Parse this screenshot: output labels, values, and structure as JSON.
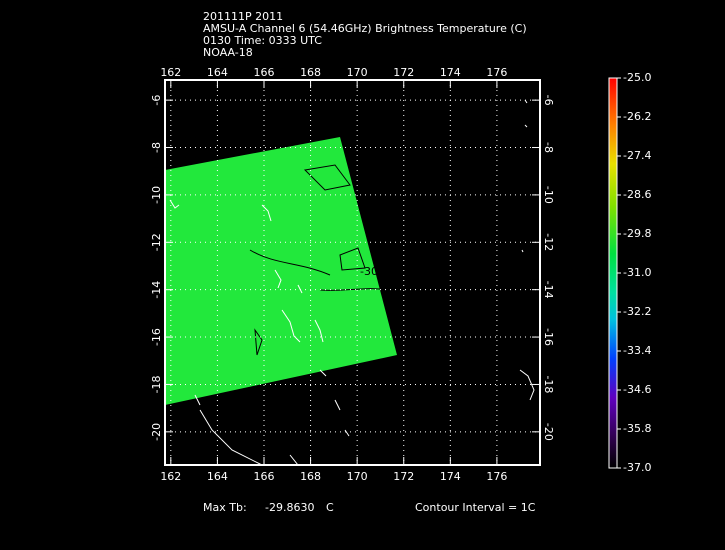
{
  "header": {
    "lines": [
      "201111P 2011",
      "AMSU-A Channel 6 (54.46GHz) Brightness Temperature (C)",
      "0130 Time: 0333 UTC",
      "NOAA-18"
    ]
  },
  "map": {
    "lonlim": [
      161.75,
      177.85
    ],
    "latlim": [
      -21.4,
      -5.15
    ],
    "lon_ticks": [
      162,
      164,
      166,
      168,
      170,
      172,
      174,
      176
    ],
    "lat_ticks": [
      -6,
      -8,
      -10,
      -12,
      -14,
      -16,
      -18,
      -20
    ],
    "contour_label": "-30"
  },
  "colorbar": {
    "range": [
      -37,
      -25
    ],
    "ticks": [
      {
        "value": -25,
        "label": "-25.0"
      },
      {
        "value": -26.2,
        "label": "-26.2"
      },
      {
        "value": -27.4,
        "label": "-27.4"
      },
      {
        "value": -28.6,
        "label": "-28.6"
      },
      {
        "value": -29.8,
        "label": "-29.8"
      },
      {
        "value": -31,
        "label": "-31.0"
      },
      {
        "value": -32.2,
        "label": "-32.2"
      },
      {
        "value": -33.4,
        "label": "-33.4"
      },
      {
        "value": -34.6,
        "label": "-34.6"
      },
      {
        "value": -35.8,
        "label": "-35.8"
      },
      {
        "value": -37,
        "label": "-37.0"
      }
    ]
  },
  "footer": {
    "max_label": "Max Tb:",
    "max_value": "-29.8630",
    "max_unit": "C",
    "contour_interval": "Contour Interval = 1C"
  }
}
